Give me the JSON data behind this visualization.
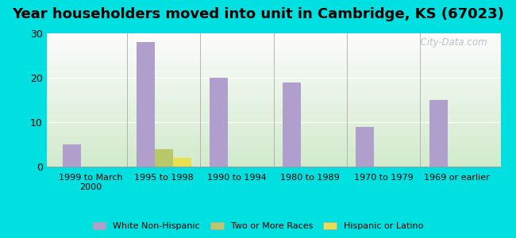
{
  "title": "Year householders moved into unit in Cambridge, KS (67023)",
  "categories": [
    "1999 to March\n2000",
    "1995 to 1998",
    "1990 to 1994",
    "1980 to 1989",
    "1970 to 1979",
    "1969 or earlier"
  ],
  "series": {
    "White Non-Hispanic": [
      5,
      28,
      20,
      19,
      9,
      15
    ],
    "Two or More Races": [
      0,
      4,
      0,
      0,
      0,
      0
    ],
    "Hispanic or Latino": [
      0,
      2,
      0,
      0,
      0,
      0
    ]
  },
  "colors": {
    "White Non-Hispanic": "#b09fcc",
    "Two or More Races": "#b8c86a",
    "Hispanic or Latino": "#e8e050"
  },
  "ylim": [
    0,
    30
  ],
  "yticks": [
    0,
    10,
    20,
    30
  ],
  "background_outer": "#00e0e0",
  "bar_width": 0.25,
  "title_fontsize": 13,
  "watermark": "  City-Data.com"
}
